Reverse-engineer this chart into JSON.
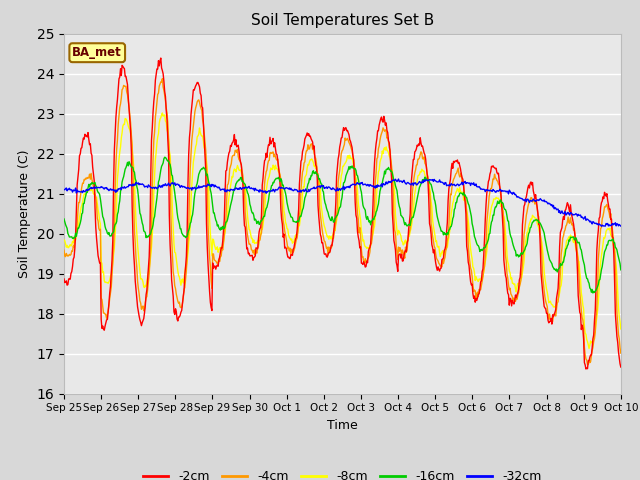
{
  "title": "Soil Temperatures Set B",
  "xlabel": "Time",
  "ylabel": "Soil Temperature (C)",
  "ylim": [
    16.0,
    25.0
  ],
  "yticks": [
    16.0,
    17.0,
    18.0,
    19.0,
    20.0,
    21.0,
    22.0,
    23.0,
    24.0,
    25.0
  ],
  "annotation_label": "BA_met",
  "annotation_box_color": "#ffff99",
  "annotation_box_edge": "#996600",
  "annotation_text_color": "#660000",
  "colors": {
    "-2cm": "#ff0000",
    "-4cm": "#ff9900",
    "-8cm": "#ffff00",
    "-16cm": "#00cc00",
    "-32cm": "#0000ff"
  },
  "legend_labels": [
    "-2cm",
    "-4cm",
    "-8cm",
    "-16cm",
    "-32cm"
  ],
  "x_tick_labels": [
    "Sep 25",
    "Sep 26",
    "Sep 27",
    "Sep 28",
    "Sep 29",
    "Sep 30",
    "Oct 1",
    "Oct 2",
    "Oct 3",
    "Oct 4",
    "Oct 5",
    "Oct 6",
    "Oct 7",
    "Oct 8",
    "Oct 9",
    "Oct 10"
  ],
  "fig_facecolor": "#d8d8d8",
  "plot_facecolor": "#e8e8e8",
  "grid_color": "#ffffff",
  "linewidth": 1.0,
  "n_days": 15,
  "pts_per_day": 48
}
